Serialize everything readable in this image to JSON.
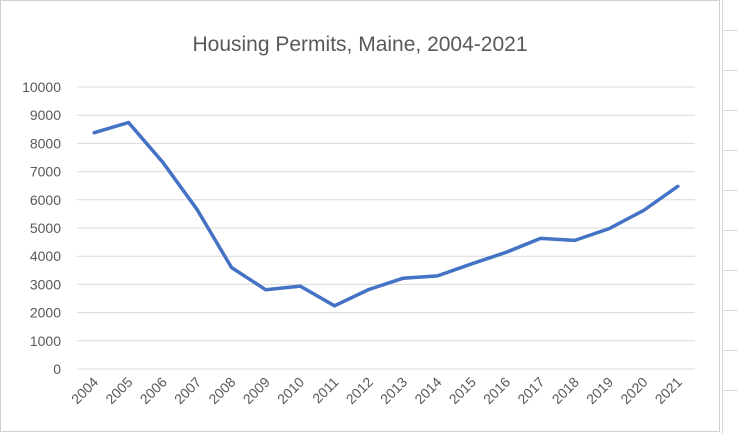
{
  "chart_data": {
    "type": "line",
    "title": "Housing Permits, Maine, 2004-2021",
    "xlabel": "",
    "ylabel": "",
    "categories": [
      "2004",
      "2005",
      "2006",
      "2007",
      "2008",
      "2009",
      "2010",
      "2011",
      "2012",
      "2013",
      "2014",
      "2015",
      "2016",
      "2017",
      "2018",
      "2019",
      "2020",
      "2021"
    ],
    "series": [
      {
        "values": [
          8380,
          8740,
          7330,
          5650,
          3600,
          2810,
          2940,
          2240,
          2820,
          3220,
          3300,
          3730,
          4140,
          4630,
          4560,
          4980,
          5620,
          6480
        ],
        "color": "#4472c4"
      }
    ],
    "ylim": [
      0,
      10000
    ],
    "yticks": [
      0,
      1000,
      2000,
      3000,
      4000,
      5000,
      6000,
      7000,
      8000,
      9000,
      10000
    ],
    "grid": true,
    "gridColor": "#d9d9d9",
    "legend": "none"
  }
}
